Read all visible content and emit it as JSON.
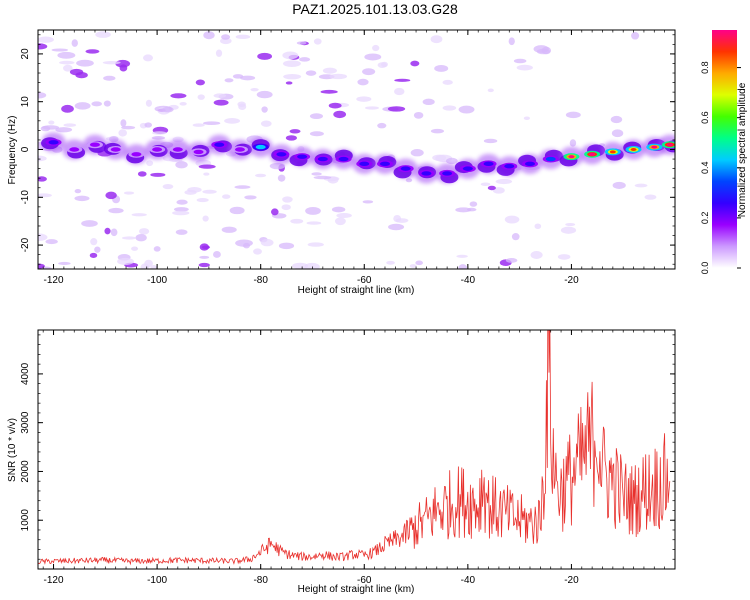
{
  "title": "PAZ1.2025.101.13.03.G28",
  "chart_data": [
    {
      "type": "heatmap",
      "title": "PAZ1.2025.101.13.03.G28",
      "xlabel": "Height of straight line (km)",
      "ylabel": "Frequency (Hz)",
      "xlim": [
        -123,
        0
      ],
      "ylim": [
        -25,
        25
      ],
      "x_ticks": [
        "-120",
        "-100",
        "-80",
        "-60",
        "-40",
        "-20"
      ],
      "y_ticks": [
        "20",
        "10",
        "0",
        "-10",
        "-20"
      ],
      "colorbar": {
        "label": "Normalized spectral amplitude",
        "range": [
          0,
          0.95
        ],
        "ticks": [
          "0.0",
          "0.2",
          "0.4",
          "0.6",
          "0.8"
        ],
        "colors": [
          "#ffffff",
          "#cc99ff",
          "#9900ff",
          "#3300ff",
          "#0044ff",
          "#00ccff",
          "#00ff88",
          "#44ff00",
          "#ddff00",
          "#ffaa00",
          "#ff3300",
          "#ff0088"
        ]
      },
      "ridge_points": [
        {
          "x": -120,
          "y": 1.5,
          "amp": 0.25
        },
        {
          "x": -116,
          "y": 0,
          "amp": 0.15
        },
        {
          "x": -112,
          "y": 1,
          "amp": 0.14
        },
        {
          "x": -108,
          "y": 0,
          "amp": 0.15
        },
        {
          "x": -104,
          "y": -1,
          "amp": 0.16
        },
        {
          "x": -100,
          "y": 0,
          "amp": 0.17
        },
        {
          "x": -96,
          "y": 0,
          "amp": 0.15
        },
        {
          "x": -92,
          "y": -0.5,
          "amp": 0.18
        },
        {
          "x": -88,
          "y": 1,
          "amp": 0.22
        },
        {
          "x": -84,
          "y": 0,
          "amp": 0.2
        },
        {
          "x": -80,
          "y": 0.5,
          "amp": 0.4
        },
        {
          "x": -76,
          "y": -1,
          "amp": 0.3
        },
        {
          "x": -72,
          "y": -1.5,
          "amp": 0.28
        },
        {
          "x": -68,
          "y": -2,
          "amp": 0.25
        },
        {
          "x": -64,
          "y": -2,
          "amp": 0.26
        },
        {
          "x": -60,
          "y": -3,
          "amp": 0.3
        },
        {
          "x": -56,
          "y": -3,
          "amp": 0.27
        },
        {
          "x": -52,
          "y": -4,
          "amp": 0.25
        },
        {
          "x": -48,
          "y": -5,
          "amp": 0.25
        },
        {
          "x": -44,
          "y": -5,
          "amp": 0.24
        },
        {
          "x": -40,
          "y": -4,
          "amp": 0.25
        },
        {
          "x": -36,
          "y": -3,
          "amp": 0.24
        },
        {
          "x": -32,
          "y": -3.5,
          "amp": 0.26
        },
        {
          "x": -28,
          "y": -3,
          "amp": 0.3
        },
        {
          "x": -24,
          "y": -2,
          "amp": 0.35
        },
        {
          "x": -20,
          "y": -1.5,
          "amp": 0.8
        },
        {
          "x": -16,
          "y": -1,
          "amp": 0.85
        },
        {
          "x": -12,
          "y": -0.5,
          "amp": 0.72
        },
        {
          "x": -8,
          "y": 0,
          "amp": 0.7
        },
        {
          "x": -4,
          "y": 0.5,
          "amp": 0.76
        },
        {
          "x": -1,
          "y": 1,
          "amp": 0.85
        }
      ]
    },
    {
      "type": "line",
      "xlabel": "Height of straight line (km)",
      "ylabel": "SNR (10 * v/v)",
      "xlim": [
        -123,
        0
      ],
      "ylim": [
        0,
        4900
      ],
      "x_ticks": [
        "-120",
        "-100",
        "-80",
        "-60",
        "-40",
        "-20"
      ],
      "y_ticks": [
        "4000",
        "3000",
        "2000",
        "1000"
      ],
      "color": "#e8302c",
      "series": [
        {
          "x": [
            -123,
            -120,
            -115,
            -110,
            -105,
            -100,
            -95,
            -90,
            -85,
            -82,
            -80,
            -78,
            -76,
            -74,
            -72,
            -70,
            -68,
            -66,
            -64,
            -62,
            -60,
            -58,
            -56,
            -54,
            -52,
            -50,
            -48,
            -46,
            -44,
            -42,
            -40,
            -38,
            -37,
            -36,
            -34,
            -32,
            -30,
            -28,
            -26,
            -25,
            -24.5,
            -24,
            -23,
            -22,
            -20,
            -18,
            -16,
            -15,
            -14,
            -12,
            -10,
            -8,
            -6,
            -4,
            -2,
            -1
          ],
          "y": [
            150,
            160,
            170,
            180,
            160,
            170,
            180,
            170,
            160,
            200,
            350,
            520,
            350,
            280,
            250,
            250,
            300,
            250,
            250,
            300,
            280,
            350,
            500,
            600,
            700,
            850,
            1000,
            1200,
            1300,
            1400,
            1400,
            1300,
            1800,
            1300,
            1200,
            1100,
            1000,
            950,
            1000,
            2500,
            4800,
            3000,
            1800,
            1600,
            1900,
            2200,
            2600,
            3000,
            2000,
            1800,
            1500,
            1400,
            1600,
            1700,
            1800,
            1800
          ]
        }
      ]
    }
  ]
}
